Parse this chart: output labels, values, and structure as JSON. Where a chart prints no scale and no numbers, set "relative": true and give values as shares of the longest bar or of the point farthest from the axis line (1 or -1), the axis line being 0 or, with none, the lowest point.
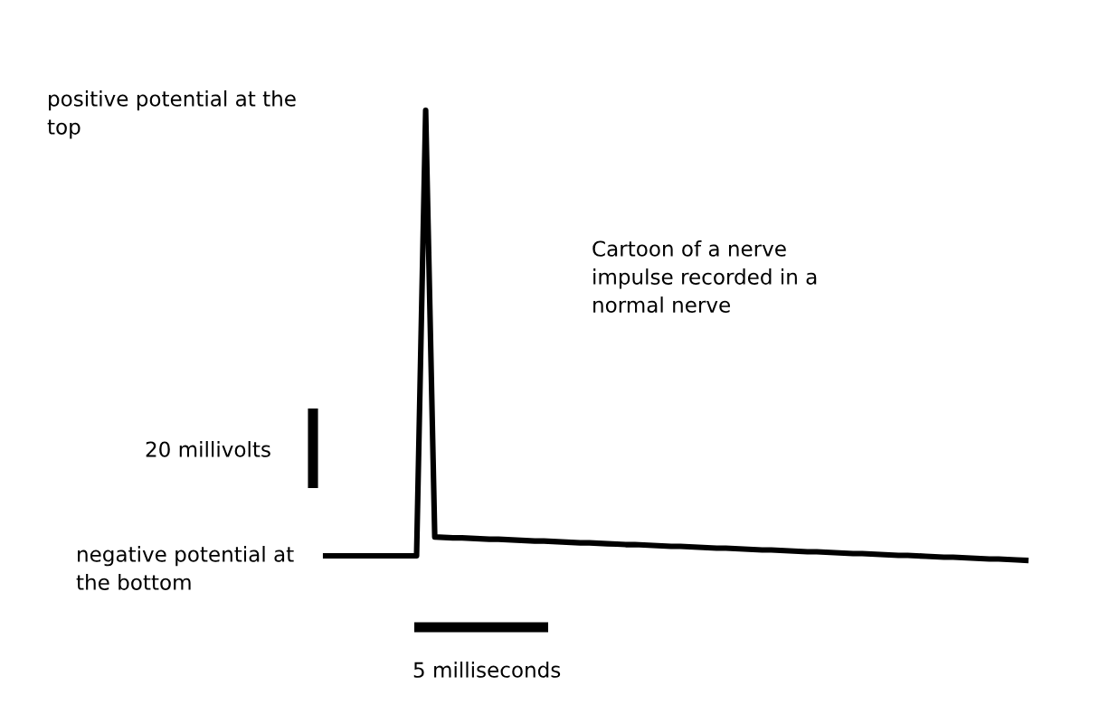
{
  "chart_data": {
    "type": "line",
    "relative": true,
    "categories": [
      null,
      null,
      null,
      null,
      null,
      null,
      null,
      null,
      null,
      null,
      null,
      null,
      null,
      null,
      null,
      null,
      null,
      null,
      null,
      null,
      null,
      null,
      null,
      null,
      null,
      null,
      null,
      null,
      null,
      null,
      null,
      null,
      null,
      null,
      null,
      null,
      null,
      null,
      null,
      null,
      null,
      null,
      null,
      null,
      null,
      null,
      null,
      null,
      null,
      null,
      null,
      null,
      null,
      null,
      null,
      null,
      null,
      null,
      null,
      null,
      null,
      null,
      null,
      null,
      null,
      null,
      null,
      null,
      null,
      null,
      null,
      null,
      null,
      null,
      null,
      null,
      null,
      null
    ],
    "series": [
      {
        "color": "#000000",
        "values": [
          0.01,
          0.01,
          0.01,
          0.01,
          0.01,
          0.01,
          0.01,
          0.01,
          0.01,
          0.01,
          0.01,
          1,
          0.052,
          0.051,
          0.05,
          0.05,
          0.049,
          0.048,
          0.047,
          0.047,
          0.046,
          0.045,
          0.044,
          0.043,
          0.043,
          0.042,
          0.041,
          0.04,
          0.039,
          0.039,
          0.038,
          0.037,
          0.036,
          0.035,
          0.035,
          0.034,
          0.033,
          0.032,
          0.031,
          0.031,
          0.03,
          0.029,
          0.028,
          0.027,
          0.027,
          0.026,
          0.025,
          0.024,
          0.023,
          0.023,
          0.022,
          0.021,
          0.02,
          0.019,
          0.019,
          0.018,
          0.017,
          0.016,
          0.015,
          0.015,
          0.014,
          0.013,
          0.012,
          0.011,
          0.011,
          0.01,
          0.009,
          0.008,
          0.007,
          0.007,
          0.006,
          0.005,
          0.004,
          0.003,
          0.003,
          0.002,
          0.001,
          0
        ]
      }
    ],
    "annotations": [
      "positive potential at the top",
      "20 millivolts",
      "negative potential at the bottom",
      "5 milliseconds",
      "Cartoon of a nerve impulse recorded in a normal nerve"
    ]
  }
}
